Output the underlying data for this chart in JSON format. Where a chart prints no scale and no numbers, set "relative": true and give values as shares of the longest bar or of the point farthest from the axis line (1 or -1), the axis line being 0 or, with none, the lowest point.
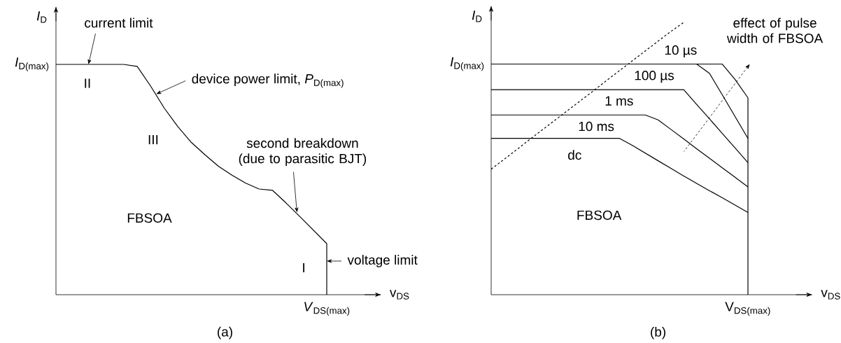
{
  "chart_data": [
    {
      "type": "line",
      "relative": true,
      "title": "(a)",
      "xlabel": "v$_{DS}$",
      "ylabel": "*I*$_{D}$",
      "color": "#000000",
      "marker": "none",
      "line_style": "solid",
      "categories": [
        null,
        null,
        null,
        null,
        null,
        null,
        null,
        null,
        null,
        null,
        null,
        null,
        null,
        null,
        null,
        null,
        null,
        null,
        null,
        null,
        null
      ],
      "values": [
        1,
        1,
        1,
        1,
        1,
        1,
        0.991,
        0.905,
        0.81,
        0.73,
        0.661,
        0.608,
        0.558,
        0.519,
        0.485,
        0.459,
        0.453,
        0.398,
        0.34,
        0.281,
        0.222
      ],
      "annotations": [
        "current limit",
        "device power limit, *P*$_{D(max)}$",
        "second breakdown (due to parasitic BJT)",
        "voltage limit",
        "II",
        "III",
        "FBSOA",
        "I",
        "*I*$_{D(max)}$",
        "*V*$_{DS(max)}$"
      ]
    },
    {
      "type": "line",
      "relative": true,
      "title": "(b)",
      "xlabel": "v$_{DS}$",
      "ylabel": "*I*$_{D}$",
      "marker": "none",
      "categories": [
        null,
        null,
        null,
        null,
        null,
        null,
        null,
        null,
        null,
        null,
        null,
        null,
        null,
        null,
        null,
        null,
        null,
        null,
        null,
        null,
        null
      ],
      "series": [
        {
          "name": "10 µs",
          "color": "#000000",
          "line_style": "solid",
          "values": [
            0.847,
            0.847,
            0.847,
            0.847,
            0.847,
            0.847,
            0.847,
            0.847,
            0.847,
            0.847,
            0.847,
            0.847,
            0.847,
            0.847,
            0.847,
            0.847,
            0.847,
            0.847,
            0.847,
            0.79,
            0.723
          ]
        },
        {
          "name": "100 µs",
          "color": "#000000",
          "line_style": "solid",
          "values": [
            0.847,
            0.847,
            0.847,
            0.847,
            0.847,
            0.847,
            0.847,
            0.847,
            0.847,
            0.847,
            0.847,
            0.847,
            0.847,
            0.847,
            0.847,
            0.847,
            0.847,
            0.813,
            0.734,
            0.654,
            0.574
          ]
        },
        {
          "name": "1 ms",
          "color": "#000000",
          "line_style": "solid",
          "values": [
            0.753,
            0.753,
            0.753,
            0.753,
            0.753,
            0.753,
            0.753,
            0.753,
            0.753,
            0.753,
            0.753,
            0.753,
            0.753,
            0.753,
            0.753,
            0.753,
            0.699,
            0.646,
            0.592,
            0.539,
            0.485
          ]
        },
        {
          "name": "10 ms",
          "color": "#000000",
          "line_style": "solid",
          "values": [
            0.66,
            0.66,
            0.66,
            0.66,
            0.66,
            0.66,
            0.66,
            0.66,
            0.66,
            0.66,
            0.66,
            0.66,
            0.66,
            0.642,
            0.607,
            0.572,
            0.536,
            0.501,
            0.466,
            0.431,
            0.396
          ]
        },
        {
          "name": "dc",
          "color": "#000000",
          "line_style": "solid",
          "values": [
            0.574,
            0.574,
            0.574,
            0.574,
            0.574,
            0.574,
            0.574,
            0.574,
            0.574,
            0.574,
            0.574,
            0.548,
            0.52,
            0.492,
            0.464,
            0.436,
            0.409,
            0.382,
            0.356,
            0.329,
            0.302
          ]
        },
        {
          "color": "#000000",
          "line_style": "dashed",
          "values": [
            0.461,
            0.497,
            0.533,
            0.57,
            0.606,
            0.642,
            0.678,
            0.714,
            0.75,
            0.787,
            0.823,
            0.859,
            0.895,
            0.931,
            0.967,
            1,
            null,
            null,
            null,
            null,
            null
          ]
        }
      ],
      "annotations": [
        "FBSOA",
        "effect of pulse width of FBSOA",
        "*I*$_{D(max)}$",
        "V$_{DS(max)}$"
      ]
    }
  ]
}
